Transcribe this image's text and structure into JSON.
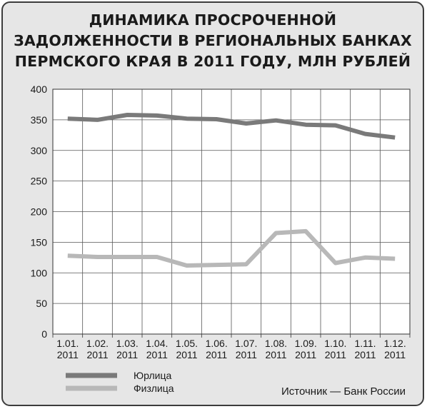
{
  "chart_data": {
    "type": "line",
    "title_lines": [
      "ДИНАМИКА ПРОСРОЧЕННОЙ",
      "ЗАДОЛЖЕННОСТИ В РЕГИОНАЛЬНЫХ БАНКАХ",
      "ПЕРМСКОГО КРАЯ В 2011 ГОДУ, МЛН РУБЛЕЙ"
    ],
    "categories": [
      [
        "1.01.",
        "2011"
      ],
      [
        "1.02.",
        "2011"
      ],
      [
        "1.03.",
        "2011"
      ],
      [
        "1.04.",
        "2011"
      ],
      [
        "1.05.",
        "2011"
      ],
      [
        "1.06.",
        "2011"
      ],
      [
        "1.07.",
        "2011"
      ],
      [
        "1.08.",
        "2011"
      ],
      [
        "1.09.",
        "2011"
      ],
      [
        "1.10.",
        "2011"
      ],
      [
        "1.11.",
        "2011"
      ],
      [
        "1.12.",
        "2011"
      ]
    ],
    "ylim": [
      0,
      400
    ],
    "yticks": [
      0,
      50,
      100,
      150,
      200,
      250,
      300,
      350,
      400
    ],
    "grid": true,
    "legend_position": "bottom-left",
    "series": [
      {
        "name": "Юрлица",
        "color": "#7a7a7a",
        "values": [
          352,
          350,
          358,
          357,
          352,
          351,
          344,
          349,
          342,
          341,
          327,
          321
        ]
      },
      {
        "name": "Физлица",
        "color": "#b8b8b8",
        "values": [
          128,
          126,
          126,
          126,
          112,
          113,
          114,
          165,
          168,
          116,
          125,
          123
        ]
      }
    ],
    "source": "Источник — Банк России"
  }
}
